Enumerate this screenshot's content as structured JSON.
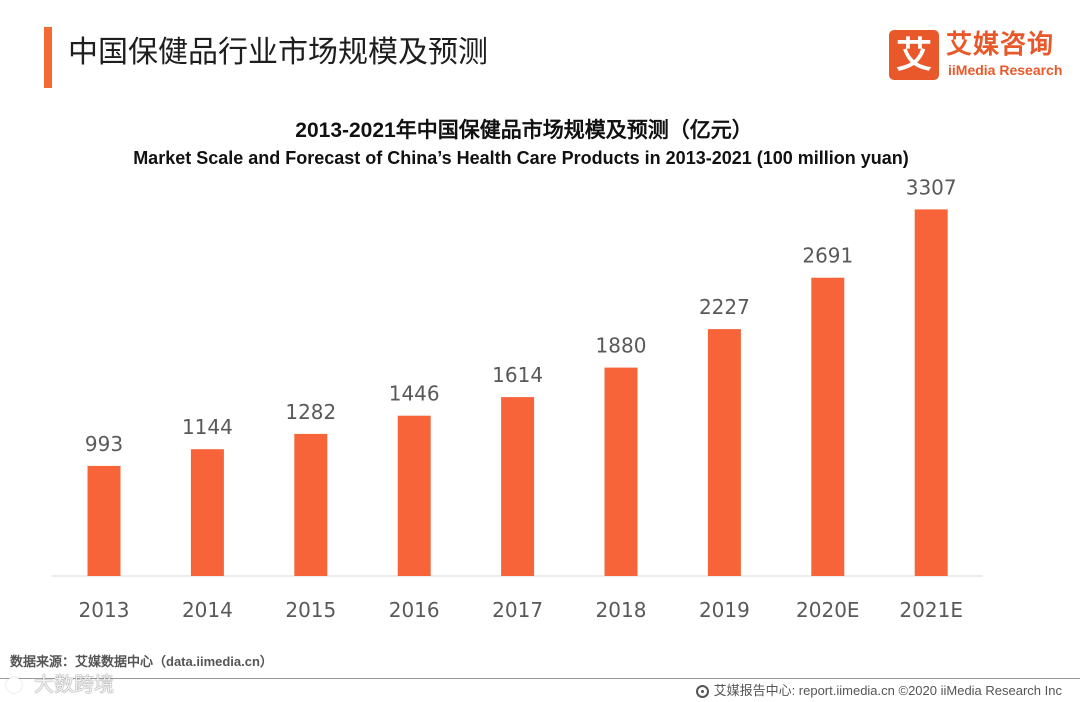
{
  "header": {
    "title": "中国保健品行业市场规模及预测",
    "accent_color": "#f26a35"
  },
  "logo": {
    "mark": "艾",
    "name_cn": "艾媒咨询",
    "name_en": "iiMedia Research",
    "color": "#e9582a"
  },
  "chart_data": {
    "type": "bar",
    "title": "2013-2021年中国保健品市场规模及预测（亿元）",
    "subtitle": "Market Scale and Forecast of China’s Health Care Products in 2013-2021 (100 million yuan)",
    "categories": [
      "2013",
      "2014",
      "2015",
      "2016",
      "2017",
      "2018",
      "2019",
      "2020E",
      "2021E"
    ],
    "values": [
      993,
      1144,
      1282,
      1446,
      1614,
      1880,
      2227,
      2691,
      3307
    ],
    "xlabel": "",
    "ylabel": "",
    "grid": false,
    "legend": "none",
    "bar_color": "#f8643a",
    "label_color": "#595959"
  },
  "footer": {
    "source": "数据来源：艾媒数据中心（data.iimedia.cn）",
    "credit_icon": "report-center-icon",
    "credit": "艾媒报告中心: report.iimedia.cn ©2020  iiMedia Research  Inc",
    "watermark": "大数跨境"
  }
}
